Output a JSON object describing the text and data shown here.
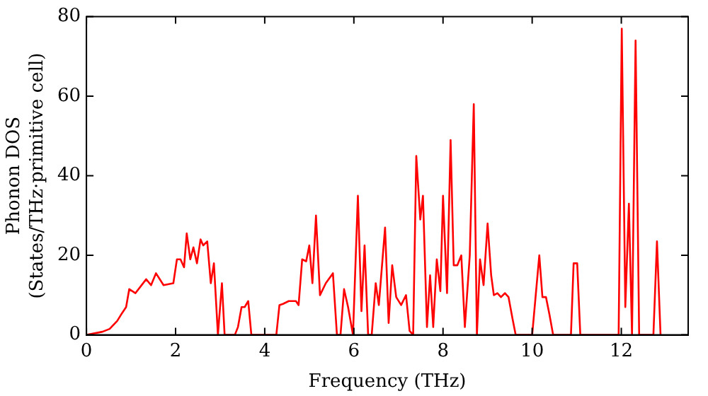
{
  "chart_data": {
    "type": "line",
    "xlabel": "Frequency (THz)",
    "ylabel": "Phonon DOS\n(States/THz·primitive cell)",
    "x": [
      0,
      0.36,
      0.52,
      0.69,
      0.8,
      0.89,
      0.96,
      1.1,
      1.34,
      1.45,
      1.56,
      1.73,
      1.95,
      2.03,
      2.11,
      2.19,
      2.25,
      2.33,
      2.4,
      2.48,
      2.56,
      2.62,
      2.71,
      2.79,
      2.86,
      2.95,
      3.04,
      3.1,
      3.33,
      3.4,
      3.48,
      3.55,
      3.63,
      3.7,
      4.26,
      4.33,
      4.41,
      4.54,
      4.7,
      4.76,
      4.84,
      4.93,
      5.0,
      5.07,
      5.15,
      5.24,
      5.37,
      5.53,
      5.62,
      5.7,
      5.78,
      5.87,
      5.98,
      6.09,
      6.17,
      6.24,
      6.32,
      6.4,
      6.49,
      6.56,
      6.7,
      6.78,
      6.86,
      6.95,
      7.06,
      7.17,
      7.25,
      7.33,
      7.4,
      7.49,
      7.55,
      7.64,
      7.71,
      7.78,
      7.86,
      7.94,
      8.0,
      8.09,
      8.17,
      8.24,
      8.32,
      8.41,
      8.49,
      8.6,
      8.69,
      8.76,
      8.83,
      8.91,
      9.0,
      9.08,
      9.14,
      9.22,
      9.3,
      9.39,
      9.47,
      9.56,
      9.63,
      10.0,
      10.08,
      10.16,
      10.23,
      10.31,
      10.39,
      10.47,
      10.87,
      10.93,
      11.01,
      11.08,
      11.94,
      12.01,
      12.09,
      12.17,
      12.24,
      12.32,
      12.4,
      12.72,
      12.8,
      12.88
    ],
    "series": [
      {
        "color": "#ff0000",
        "values": [
          0,
          0.8,
          1.5,
          3.5,
          5.5,
          7,
          11.5,
          10.5,
          14,
          12.5,
          15.5,
          12.5,
          13,
          19,
          19,
          17,
          25.5,
          19,
          22,
          18,
          24,
          22.5,
          23.5,
          13,
          18,
          0,
          13,
          0,
          0,
          2,
          7,
          7,
          8.5,
          0,
          0,
          7.5,
          7.8,
          8.5,
          8.5,
          7.5,
          19,
          18.5,
          22.5,
          13,
          30,
          10,
          13,
          15.5,
          0,
          0,
          11.5,
          7,
          0,
          35,
          6,
          22.5,
          0,
          0,
          13,
          7.5,
          27,
          3,
          17.5,
          9.5,
          7.5,
          10,
          1,
          0,
          45,
          29,
          35,
          2,
          15,
          2,
          19,
          11,
          35,
          10.5,
          49,
          17.5,
          17.5,
          20,
          2,
          20,
          58,
          0,
          19,
          12.5,
          28,
          15,
          10,
          10.5,
          9.5,
          10.5,
          9.5,
          4,
          0,
          0,
          10,
          20,
          9.5,
          9.5,
          5,
          0,
          0,
          18,
          18,
          0,
          0,
          77,
          7,
          33,
          0,
          74,
          0,
          0,
          23.5,
          0
        ]
      }
    ],
    "xlim": [
      0,
      13.5
    ],
    "xticks": [
      0,
      2,
      4,
      6,
      8,
      10,
      12
    ],
    "ylim": [
      0,
      80
    ],
    "yticks": [
      0,
      20,
      40,
      60,
      80
    ],
    "grid": false,
    "legend": false,
    "marker": "none",
    "line_style": "solid"
  }
}
